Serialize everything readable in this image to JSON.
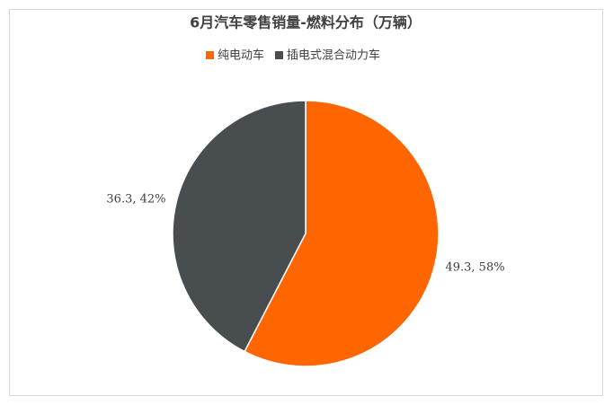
{
  "chart_data": {
    "type": "pie",
    "title": "6月汽车零售销量-燃料分布（万辆）",
    "categories": [
      "纯电动车",
      "插电式混合动力车"
    ],
    "values": [
      49.3,
      36.3
    ],
    "value_labels": [
      "49.3, 58%",
      "36.3, 42%"
    ],
    "colors": [
      "#ff6600",
      "#484d50"
    ],
    "legend": "top"
  }
}
